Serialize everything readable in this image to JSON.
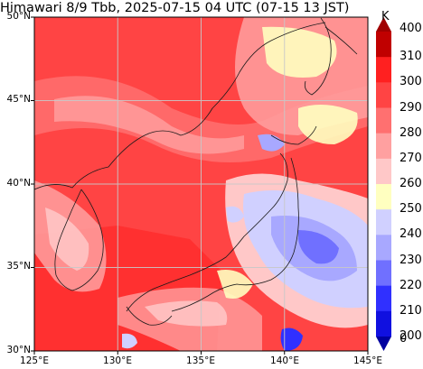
{
  "title": "Himawari 8/9 Tbb, 2025-07-15 04 UTC (07-15 13 JST)",
  "map": {
    "lon_range": [
      125,
      145
    ],
    "lat_range": [
      30,
      50
    ],
    "lat_ticks": [
      "50°N",
      "45°N",
      "40°N",
      "35°N",
      "30°N"
    ],
    "lon_ticks": [
      "125°E",
      "130°E",
      "135°E",
      "140°E",
      "145°E"
    ],
    "grid": true,
    "field": "brightness temperature, mostly warm (290–300 K) over sea and Asian mainland, cooler cloud bands (220–260 K) over northern Japan, Sea of Japan coast and north-east Honshu"
  },
  "colorbar": {
    "unit": "K",
    "levels": [
      "400",
      "310",
      "300",
      "290",
      "280",
      "270",
      "260",
      "250",
      "240",
      "230",
      "220",
      "210",
      "200",
      "0"
    ],
    "colors": [
      "#a00000",
      "#c00000",
      "#ff2020",
      "#ff4444",
      "#ff7070",
      "#ffa0a0",
      "#ffc8c8",
      "#ffffc0",
      "#d0d0ff",
      "#a8a8ff",
      "#7070ff",
      "#3030ff",
      "#1010e0",
      "#0000a0"
    ]
  },
  "colors": {
    "coast": "#1a1a1a",
    "grid": "#c8c8c8",
    "frame": "#000000"
  }
}
